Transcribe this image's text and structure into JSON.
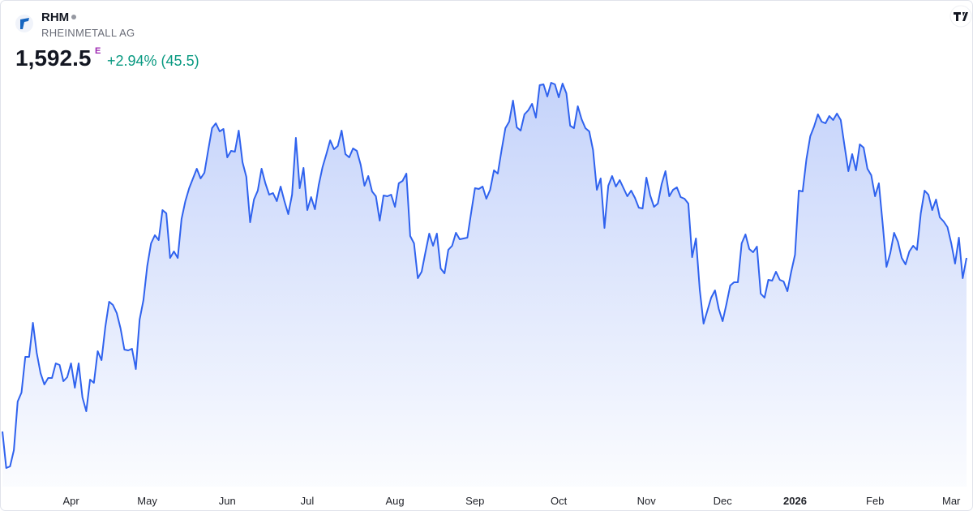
{
  "header": {
    "symbol": "RHM",
    "name": "RHEINMETALL AG",
    "price": "1,592.5",
    "price_flag": "E",
    "change": "+2.94% (45.5)"
  },
  "chart_data": {
    "type": "area",
    "color": "#2f62ee",
    "ylim": [
      968.5,
      2228.5
    ],
    "categories": [
      null,
      null,
      null,
      null,
      null,
      null,
      null,
      null,
      null,
      null,
      null,
      null,
      null,
      null,
      null,
      null,
      null,
      null,
      "Apr",
      null,
      null,
      null,
      null,
      null,
      null,
      null,
      null,
      null,
      null,
      null,
      null,
      null,
      null,
      null,
      null,
      null,
      null,
      null,
      "May",
      null,
      null,
      null,
      null,
      null,
      null,
      null,
      null,
      null,
      null,
      null,
      null,
      null,
      null,
      null,
      null,
      null,
      null,
      null,
      null,
      "Jun",
      null,
      null,
      null,
      null,
      null,
      null,
      null,
      null,
      null,
      null,
      null,
      null,
      null,
      null,
      null,
      null,
      null,
      null,
      null,
      null,
      "Jul",
      null,
      null,
      null,
      null,
      null,
      null,
      null,
      null,
      null,
      null,
      null,
      null,
      null,
      null,
      null,
      null,
      null,
      null,
      null,
      null,
      null,
      null,
      "Aug",
      null,
      null,
      null,
      null,
      null,
      null,
      null,
      null,
      null,
      null,
      null,
      null,
      null,
      null,
      null,
      null,
      null,
      null,
      null,
      null,
      "Sep",
      null,
      null,
      null,
      null,
      null,
      null,
      null,
      null,
      null,
      null,
      null,
      null,
      null,
      null,
      null,
      null,
      null,
      null,
      null,
      null,
      null,
      "Oct",
      null,
      null,
      null,
      null,
      null,
      null,
      null,
      null,
      null,
      null,
      null,
      null,
      null,
      null,
      null,
      null,
      null,
      null,
      null,
      null,
      null,
      null,
      "Nov",
      null,
      null,
      null,
      null,
      null,
      null,
      null,
      null,
      null,
      null,
      null,
      null,
      null,
      null,
      null,
      null,
      null,
      null,
      null,
      "Dec",
      null,
      null,
      null,
      null,
      null,
      null,
      null,
      null,
      null,
      null,
      null,
      null,
      null,
      null,
      null,
      null,
      null,
      null,
      "2026",
      null,
      null,
      null,
      null,
      null,
      null,
      null,
      null,
      null,
      null,
      null,
      null,
      null,
      null,
      null,
      null,
      null,
      null,
      null,
      null,
      "Feb",
      null,
      null,
      null,
      null,
      null,
      null,
      null,
      null,
      null,
      null,
      null,
      null,
      null,
      null,
      null,
      null,
      null,
      null,
      null,
      "Mar",
      null,
      null,
      null,
      null
    ],
    "values": [
      1164.5,
      1074.5,
      1078.5,
      1118.5,
      1238.5,
      1260.5,
      1348.5,
      1348.5,
      1432.5,
      1358.5,
      1308.5,
      1280.5,
      1296.5,
      1296.5,
      1332.5,
      1328.5,
      1288.5,
      1298.5,
      1332.5,
      1272.5,
      1332.5,
      1248.5,
      1214.5,
      1292.5,
      1284.5,
      1362.5,
      1340.5,
      1422.5,
      1484.5,
      1476.5,
      1456.5,
      1418.5,
      1366.5,
      1364.5,
      1368.5,
      1318.5,
      1440.5,
      1488.5,
      1572.5,
      1628.5,
      1648.5,
      1636.5,
      1710.5,
      1702.5,
      1592.5,
      1608.5,
      1592.5,
      1688.5,
      1732.5,
      1764.5,
      1788.5,
      1812.5,
      1788.5,
      1802.5,
      1858.5,
      1912.5,
      1924.5,
      1904.5,
      1910.5,
      1840.5,
      1856.5,
      1854.5,
      1906.5,
      1828.5,
      1792.5,
      1680.5,
      1736.5,
      1758.5,
      1812.5,
      1776.5,
      1748.5,
      1752.5,
      1732.5,
      1768.5,
      1732.5,
      1700.5,
      1748.5,
      1888.5,
      1764.5,
      1814.5,
      1710.5,
      1742.5,
      1712.5,
      1772.5,
      1816.5,
      1848.5,
      1882.5,
      1860.5,
      1868.5,
      1906.5,
      1848.5,
      1840.5,
      1862.5,
      1856.5,
      1822.5,
      1770.5,
      1794.5,
      1756.5,
      1744.5,
      1684.5,
      1746.5,
      1744.5,
      1748.5,
      1718.5,
      1776.5,
      1782.5,
      1800.5,
      1646.5,
      1628.5,
      1542.5,
      1558.5,
      1606.5,
      1652.5,
      1622.5,
      1652.5,
      1566.5,
      1554.5,
      1612.5,
      1622.5,
      1654.5,
      1638.5,
      1640.5,
      1642.5,
      1704.5,
      1764.5,
      1762.5,
      1768.5,
      1738.5,
      1760.5,
      1808.5,
      1800.5,
      1858.5,
      1912.5,
      1928.5,
      1980.5,
      1914.5,
      1906.5,
      1946.5,
      1956.5,
      1972.5,
      1938.5,
      2018.5,
      2020.5,
      1990.5,
      2024.5,
      2020.5,
      1988.5,
      2022.5,
      1998.5,
      1918.5,
      1912.5,
      1966.5,
      1934.5,
      1912.5,
      1904.5,
      1858.5,
      1760.5,
      1788.5,
      1666.5,
      1770.5,
      1794.5,
      1768.5,
      1784.5,
      1764.5,
      1744.5,
      1758.5,
      1740.5,
      1716.5,
      1714.5,
      1790.5,
      1746.5,
      1718.5,
      1726.5,
      1774.5,
      1806.5,
      1744.5,
      1760.5,
      1766.5,
      1742.5,
      1738.5,
      1726.5,
      1594.5,
      1640.5,
      1514.5,
      1430.5,
      1462.5,
      1494.5,
      1512.5,
      1466.5,
      1436.5,
      1478.5,
      1524.5,
      1532.5,
      1532.5,
      1628.5,
      1650.5,
      1614.5,
      1606.5,
      1620.5,
      1504.5,
      1494.5,
      1538.5,
      1536.5,
      1558.5,
      1538.5,
      1534.5,
      1510.5,
      1558.5,
      1600.5,
      1758.5,
      1756.5,
      1836.5,
      1892.5,
      1916.5,
      1946.5,
      1928.5,
      1924.5,
      1942.5,
      1932.5,
      1948.5,
      1932.5,
      1868.5,
      1806.5,
      1848.5,
      1808.5,
      1872.5,
      1864.5,
      1812.5,
      1796.5,
      1744.5,
      1776.5,
      1676.5,
      1570.5,
      1604.5,
      1654.5,
      1632.5,
      1592.5,
      1576.5,
      1608.5,
      1622.5,
      1612.5,
      1702.5,
      1758.5,
      1748.5,
      1710.5,
      1736.5,
      1692.5,
      1682.5,
      1668.5,
      1628.5,
      1578.5,
      1642.5,
      1542.5,
      1592.5
    ]
  }
}
